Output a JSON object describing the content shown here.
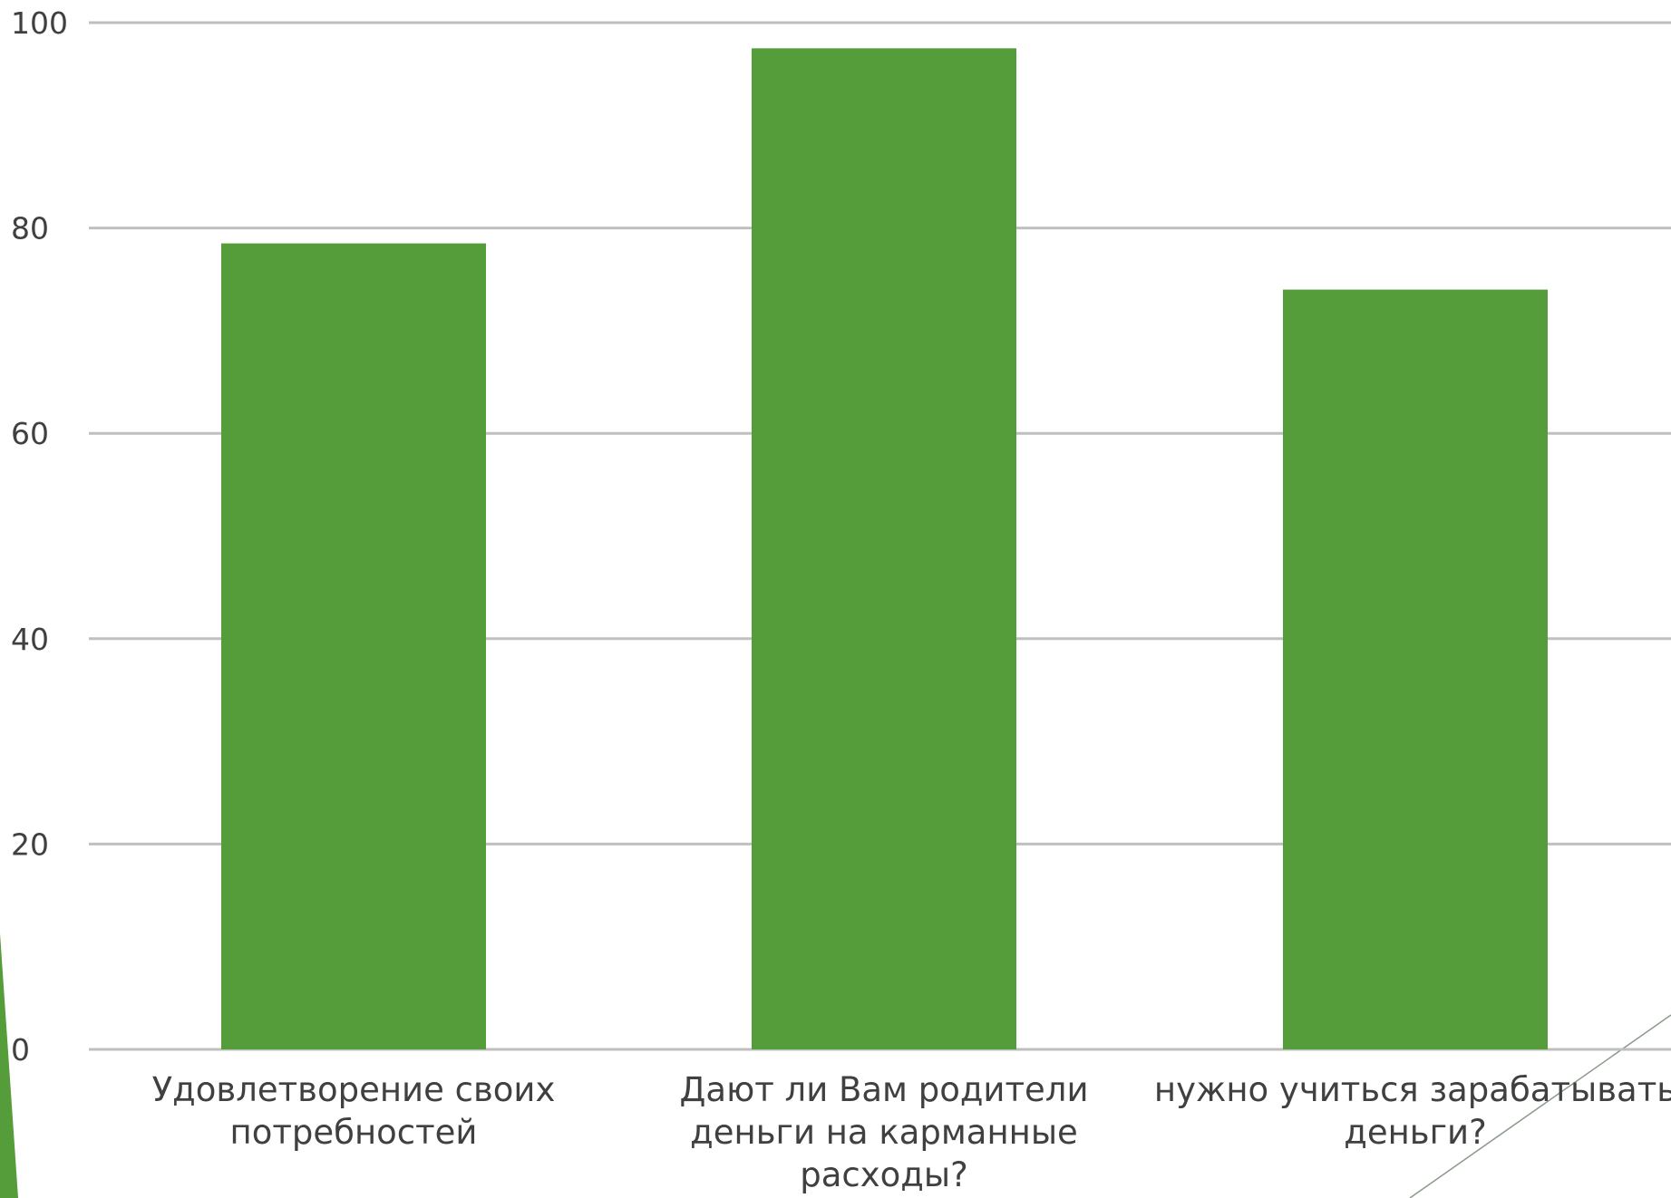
{
  "chart_data": {
    "type": "bar",
    "categories": [
      [
        "Удовлетворение своих",
        "потребностей"
      ],
      [
        "Дают ли Вам родители",
        "деньги на карманные",
        "расходы?"
      ],
      [
        "нужно учиться зарабатывать",
        "деньги?"
      ]
    ],
    "values": [
      78.5,
      97.5,
      74
    ],
    "title": "",
    "xlabel": "",
    "ylabel": "",
    "ylim": [
      0,
      100
    ],
    "yticks": [
      "0",
      "20",
      "40",
      "60",
      "80",
      "100"
    ],
    "grid": true,
    "legend": "none",
    "colors": {
      "bar": "#559c3a",
      "grid": "#bfbfbf",
      "text": "#404040",
      "accent_shape": "#559c3a",
      "accent_line": "#8a9a8a"
    }
  }
}
